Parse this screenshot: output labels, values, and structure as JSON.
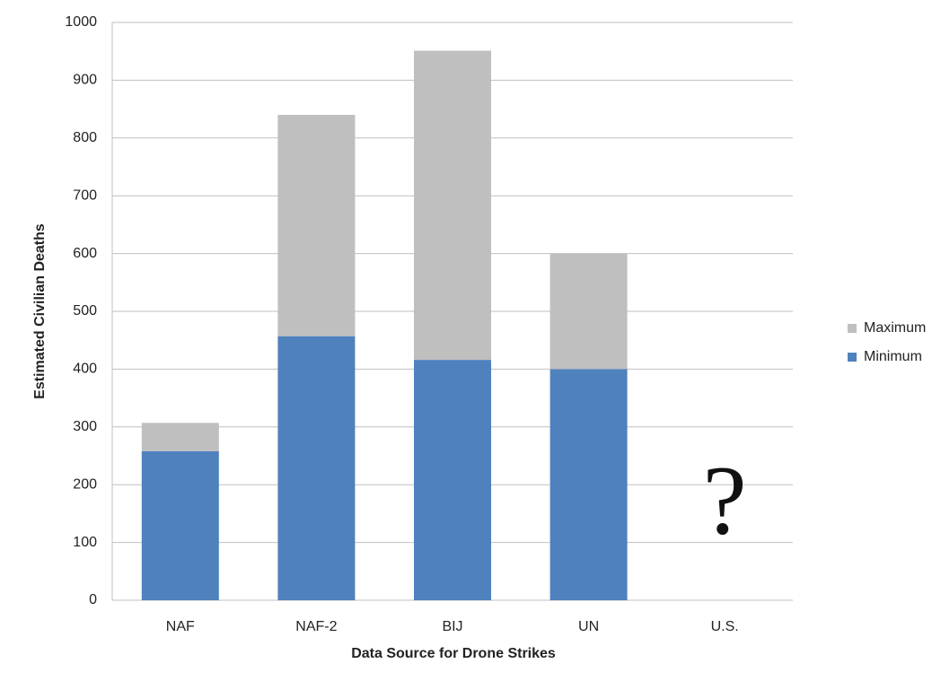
{
  "chart_data": {
    "type": "stacked_bar",
    "categories": [
      "NAF",
      "NAF-2",
      "BIJ",
      "UN",
      "U.S."
    ],
    "series": [
      {
        "name": "Minimum",
        "color": "#4f81bd",
        "values": [
          258,
          457,
          416,
          400,
          null
        ]
      },
      {
        "name": "Maximum",
        "color": "#bfbfbf",
        "values": [
          49,
          383,
          535,
          200,
          null
        ]
      }
    ],
    "xlabel": "Data Source for Drone Strikes",
    "ylabel": "Estimated Civilian Deaths",
    "annotation": "?",
    "ylim": [
      0,
      1000
    ],
    "yticks": [
      0,
      100,
      200,
      300,
      400,
      500,
      600,
      700,
      800,
      900,
      1000
    ],
    "grid": true,
    "legend": "right"
  }
}
